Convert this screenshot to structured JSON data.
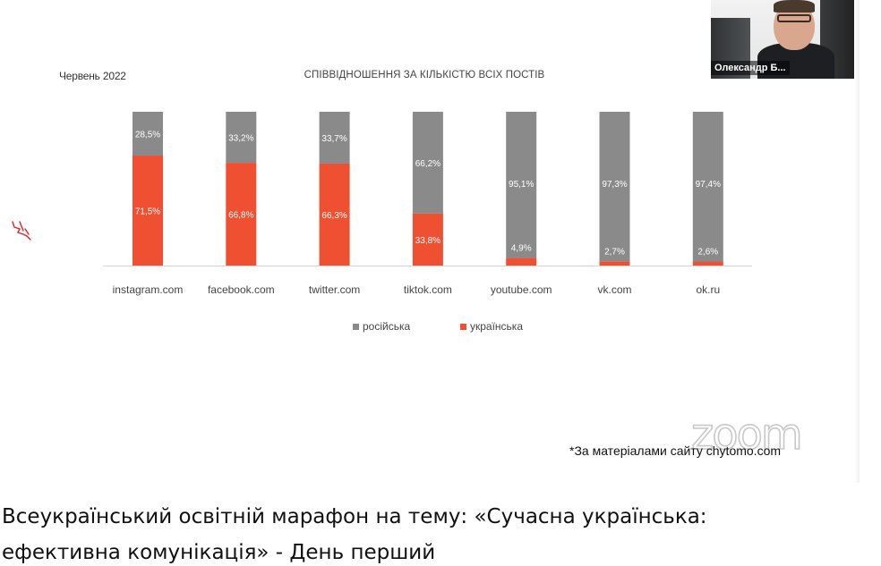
{
  "slide": {
    "date_label": "Червень 2022",
    "source_note": "*За матеріалами сайту chytomo.com",
    "zoom_watermark": "zoom"
  },
  "participant": {
    "name": "Олександр Б..."
  },
  "caption": {
    "line1": "Всеукраїнський освітній марафон на тему: «Сучасна українська:",
    "line2": "ефективна комунікація» - День перший"
  },
  "colors": {
    "russian": "#8a8a8a",
    "ukrainian": "#f05032"
  },
  "chart_data": {
    "type": "bar",
    "stacked": true,
    "percent": true,
    "title": "СПІВВІДНОШЕННЯ ЗА КІЛЬКІСТЮ ВСІХ ПОСТІВ",
    "categories": [
      "instagram.com",
      "facebook.com",
      "twitter.com",
      "tiktok.com",
      "youtube.com",
      "vk.com",
      "ok.ru"
    ],
    "series": [
      {
        "name": "українська",
        "color": "#f05032",
        "values": [
          71.5,
          66.8,
          66.3,
          33.8,
          4.9,
          2.7,
          2.6
        ],
        "labels": [
          "71,5%",
          "66,8%",
          "66,3%",
          "33,8%",
          "4,9%",
          "2,7%",
          "2,6%"
        ]
      },
      {
        "name": "російська",
        "color": "#8a8a8a",
        "values": [
          28.5,
          33.2,
          33.7,
          66.2,
          95.1,
          97.3,
          97.4
        ],
        "labels": [
          "28,5%",
          "33,2%",
          "33,7%",
          "66,2%",
          "95,1%",
          "97,3%",
          "97,4%"
        ]
      }
    ],
    "legend_order": [
      "російська",
      "українська"
    ],
    "legend_position": "bottom",
    "ylim": [
      0,
      100
    ],
    "grid": false
  }
}
